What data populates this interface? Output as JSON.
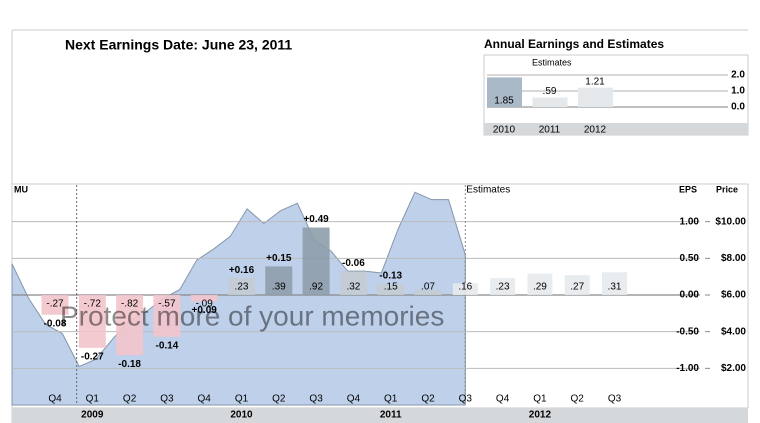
{
  "header": {
    "title": "Next Earnings Date: June 23, 2011"
  },
  "watermark": "Protect more of your memories",
  "chart_data": [
    {
      "type": "bar",
      "title": "Annual Earnings and Estimates",
      "annotation": "Estimates",
      "categories": [
        "2010",
        "2011",
        "2012"
      ],
      "values": [
        1.85,
        0.59,
        1.21
      ],
      "value_labels": [
        "1.85",
        ".59",
        "1.21"
      ],
      "colors": [
        "#a9b9c7",
        "#e4e8eb",
        "#e4e8eb"
      ],
      "ylim": [
        0,
        2
      ],
      "yticks": [
        {
          "value": 2,
          "label": "2.0"
        },
        {
          "value": 1,
          "label": "1.0"
        },
        {
          "value": 0,
          "label": "0.0"
        }
      ]
    },
    {
      "type": "bar",
      "title": "MU",
      "ylabel": "EPS",
      "y2label": "Price",
      "categories": [
        "Q4",
        "Q1",
        "Q2",
        "Q3",
        "Q4",
        "Q1",
        "Q2",
        "Q3",
        "Q4",
        "Q1",
        "Q2",
        "Q3",
        "Q4",
        "Q1",
        "Q2",
        "Q3"
      ],
      "years": [
        "2009",
        "2010",
        "2011",
        "2012"
      ],
      "series": [
        {
          "values": [
            -0.27,
            -0.72,
            -0.82,
            -0.57,
            -0.09,
            0.23,
            0.39,
            0.92,
            0.32,
            0.15,
            0.07,
            null,
            null,
            null,
            null,
            null
          ],
          "value_labels": [
            "-.27",
            "-.72",
            "-.82",
            "-.57",
            "-.09",
            ".23",
            ".39",
            ".92",
            ".32",
            ".15",
            ".07",
            null,
            null,
            null,
            null,
            null
          ],
          "color": "#c4ccd3",
          "negative_color": "#f3c4cc"
        },
        {
          "name": "Estimates",
          "values": [
            null,
            null,
            null,
            null,
            null,
            null,
            null,
            null,
            null,
            null,
            null,
            0.16,
            0.23,
            0.29,
            0.27,
            0.31
          ],
          "value_labels": [
            null,
            null,
            null,
            null,
            null,
            null,
            null,
            null,
            null,
            null,
            null,
            ".16",
            ".23",
            ".29",
            ".27",
            ".31"
          ],
          "color": "#e6eaed"
        }
      ],
      "surprises": {
        "values": [
          -0.08,
          -0.27,
          -0.18,
          -0.14,
          0.09,
          0.16,
          0.15,
          0.49,
          -0.06,
          -0.13,
          null,
          null,
          null,
          null,
          null,
          null
        ],
        "value_labels": [
          "-0.08",
          "-0.27",
          "-0.18",
          "-0.14",
          "+0.09",
          "+0.16",
          "+0.15",
          "+0.49",
          "-0.06",
          "-0.13",
          null,
          null,
          null,
          null,
          null,
          null
        ],
        "positive_color": "#008800",
        "negative_color": "#8b0000"
      },
      "price": {
        "type": "area",
        "axis": "y2",
        "color": "#8496ab",
        "fill": "#b3c8e6",
        "values": [
          7.7,
          5.8,
          4.4,
          3.9,
          2.1,
          2.5,
          3.6,
          4.6,
          5.1,
          5.8,
          6.3,
          7.9,
          8.5,
          9.2,
          10.7,
          9.9,
          10.6,
          11.0,
          9.0,
          8.4,
          7.3,
          7.3,
          7.2,
          9.6,
          11.6,
          11.2,
          11.2,
          8.2
        ]
      },
      "ylim": [
        -1.5,
        1.5
      ],
      "yticks": [
        {
          "value": 1,
          "label": "1.00"
        },
        {
          "value": 0.5,
          "label": "0.50"
        },
        {
          "value": 0,
          "label": "0.00"
        },
        {
          "value": -0.5,
          "label": "-0.50"
        },
        {
          "value": -1,
          "label": "-1.00"
        }
      ],
      "y2lim": [
        0,
        12
      ],
      "y2ticks": [
        {
          "value": 10,
          "label": "$10.00"
        },
        {
          "value": 8,
          "label": "$8.00"
        },
        {
          "value": 6,
          "label": "$6.00"
        },
        {
          "value": 4,
          "label": "$4.00"
        },
        {
          "value": 2,
          "label": "$2.00"
        }
      ],
      "grid": true
    }
  ]
}
